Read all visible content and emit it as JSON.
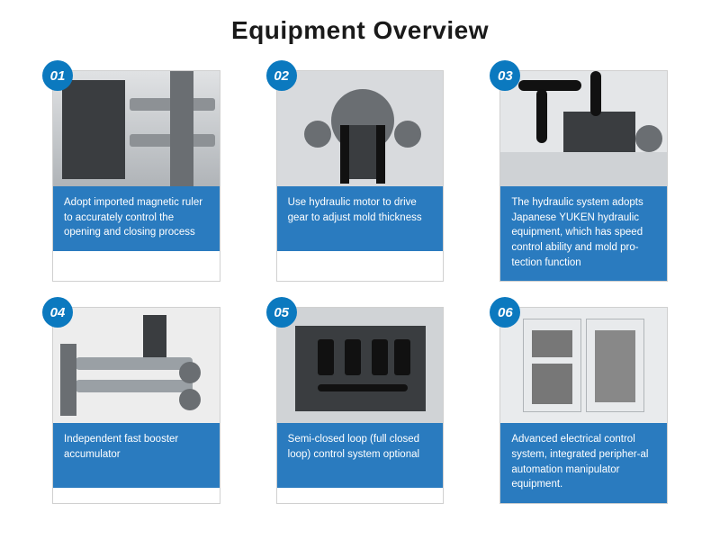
{
  "page": {
    "title": "Equipment Overview",
    "title_color": "#1a1a1a",
    "title_fontsize": 28,
    "background": "#ffffff"
  },
  "badge": {
    "bg_color": "#0b79bf",
    "text_color": "#ffffff"
  },
  "caption_box": {
    "bg_color": "#2a7bbf",
    "text_color": "#ffffff",
    "fontsize": 11.5
  },
  "cards": [
    {
      "num": "01",
      "caption": "Adopt imported magnetic ruler to accurately control the opening and closing process",
      "image_hint": "machine-rail-closeup"
    },
    {
      "num": "02",
      "caption": "Use hydraulic motor to drive gear to adjust mold thickness",
      "image_hint": "hydraulic-motor-gear"
    },
    {
      "num": "03",
      "caption": "The hydraulic system adopts Japanese YUKEN hydraulic equipment, which has speed control ability and  mold pro-tection function",
      "image_hint": "yuken-hydraulic-unit"
    },
    {
      "num": "04",
      "caption": "Independent fast booster accumulator",
      "image_hint": "booster-accumulator"
    },
    {
      "num": "05",
      "caption": "Semi-closed loop (full closed loop) control system optional",
      "image_hint": "valve-manifold"
    },
    {
      "num": "06",
      "caption": "Advanced electrical control system, integrated peripher-al automation manipulator equipment.",
      "image_hint": "electrical-control-cabinet"
    }
  ]
}
